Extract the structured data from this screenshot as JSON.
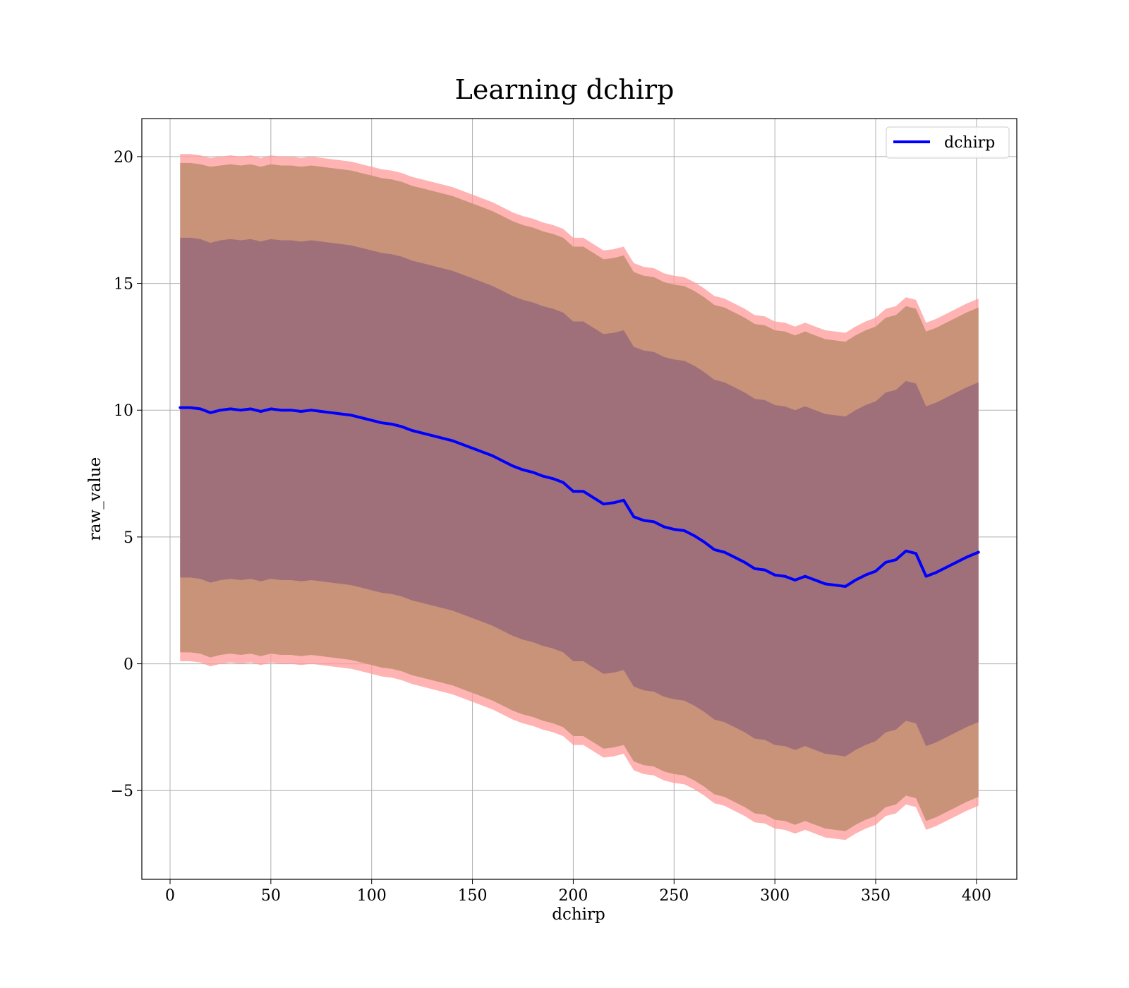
{
  "chart_data": {
    "type": "line",
    "title": "Learning dchirp",
    "xlabel": "dchirp",
    "ylabel": "raw_value",
    "xlim": [
      -14,
      420
    ],
    "ylim": [
      -8.5,
      21.5
    ],
    "x_ticks": [
      0,
      50,
      100,
      150,
      200,
      250,
      300,
      350,
      400
    ],
    "y_ticks": [
      -5,
      0,
      5,
      10,
      15,
      20
    ],
    "y_tick_labels": [
      "−5",
      "0",
      "5",
      "10",
      "15",
      "20"
    ],
    "grid": true,
    "legend": {
      "placement": "top-right",
      "entries": [
        "dchirp"
      ]
    },
    "colors": {
      "line": "#0000ff",
      "outer_band": "#ff9999",
      "middle_band": "#c9937a",
      "inner_band": "#a0707a"
    },
    "x": [
      5,
      10,
      15,
      20,
      25,
      30,
      35,
      40,
      45,
      50,
      55,
      60,
      65,
      70,
      75,
      80,
      85,
      90,
      95,
      100,
      105,
      110,
      115,
      120,
      125,
      130,
      135,
      140,
      145,
      150,
      155,
      160,
      165,
      170,
      175,
      180,
      185,
      190,
      195,
      200,
      205,
      210,
      215,
      220,
      225,
      230,
      235,
      240,
      245,
      250,
      255,
      260,
      265,
      270,
      275,
      280,
      285,
      290,
      295,
      300,
      305,
      310,
      315,
      320,
      325,
      330,
      335,
      340,
      345,
      350,
      355,
      360,
      365,
      370,
      375,
      380,
      385,
      390,
      395,
      401
    ],
    "series": [
      {
        "name": "dchirp",
        "values": [
          10.1,
          10.1,
          10.05,
          9.9,
          10.0,
          10.05,
          10.0,
          10.05,
          9.95,
          10.05,
          10.0,
          10.0,
          9.95,
          10.0,
          9.95,
          9.9,
          9.85,
          9.8,
          9.7,
          9.6,
          9.5,
          9.45,
          9.35,
          9.2,
          9.1,
          9.0,
          8.9,
          8.8,
          8.65,
          8.5,
          8.35,
          8.2,
          8.0,
          7.8,
          7.65,
          7.55,
          7.4,
          7.3,
          7.15,
          6.8,
          6.8,
          6.55,
          6.3,
          6.35,
          6.45,
          5.8,
          5.65,
          5.6,
          5.4,
          5.3,
          5.25,
          5.05,
          4.8,
          4.5,
          4.4,
          4.2,
          4.0,
          3.75,
          3.7,
          3.5,
          3.45,
          3.3,
          3.45,
          3.3,
          3.15,
          3.1,
          3.05,
          3.3,
          3.5,
          3.65,
          4.0,
          4.1,
          4.45,
          4.35,
          3.45,
          3.6,
          3.8,
          4.0,
          4.2,
          4.4
        ]
      }
    ],
    "bands": {
      "outer_upper": [
        20.1,
        20.1,
        20.05,
        19.95,
        20.0,
        20.05,
        20.0,
        20.05,
        19.95,
        20.05,
        20.0,
        20.0,
        19.95,
        20.0,
        19.95,
        19.9,
        19.85,
        19.8,
        19.7,
        19.6,
        19.5,
        19.45,
        19.35,
        19.2,
        19.1,
        19.0,
        18.9,
        18.8,
        18.65,
        18.5,
        18.35,
        18.2,
        18.0,
        17.8,
        17.65,
        17.55,
        17.4,
        17.3,
        17.15,
        16.8,
        16.8,
        16.55,
        16.3,
        16.35,
        16.45,
        15.8,
        15.65,
        15.6,
        15.4,
        15.3,
        15.25,
        15.05,
        14.8,
        14.5,
        14.4,
        14.2,
        14.0,
        13.75,
        13.7,
        13.5,
        13.45,
        13.3,
        13.45,
        13.3,
        13.15,
        13.1,
        13.05,
        13.3,
        13.5,
        13.65,
        14.0,
        14.1,
        14.45,
        14.35,
        13.45,
        13.6,
        13.8,
        14.0,
        14.2,
        14.4
      ],
      "outer_lower": [
        0.1,
        0.1,
        0.05,
        -0.1,
        0.0,
        0.05,
        0.0,
        0.05,
        -0.05,
        0.05,
        0.0,
        0.0,
        -0.05,
        0.0,
        -0.05,
        -0.1,
        -0.15,
        -0.2,
        -0.3,
        -0.4,
        -0.5,
        -0.55,
        -0.65,
        -0.8,
        -0.9,
        -1.0,
        -1.1,
        -1.2,
        -1.35,
        -1.5,
        -1.65,
        -1.8,
        -2.0,
        -2.2,
        -2.35,
        -2.45,
        -2.6,
        -2.7,
        -2.85,
        -3.2,
        -3.2,
        -3.45,
        -3.7,
        -3.65,
        -3.55,
        -4.2,
        -4.35,
        -4.4,
        -4.6,
        -4.7,
        -4.75,
        -4.95,
        -5.2,
        -5.5,
        -5.6,
        -5.8,
        -6.0,
        -6.25,
        -6.3,
        -6.5,
        -6.55,
        -6.7,
        -6.55,
        -6.7,
        -6.85,
        -6.9,
        -6.95,
        -6.7,
        -6.5,
        -6.35,
        -6.0,
        -5.9,
        -5.55,
        -5.65,
        -6.55,
        -6.4,
        -6.2,
        -6.0,
        -5.8,
        -5.6
      ],
      "middle_upper": [
        19.75,
        19.75,
        19.7,
        19.6,
        19.65,
        19.7,
        19.65,
        19.7,
        19.6,
        19.7,
        19.65,
        19.65,
        19.6,
        19.65,
        19.6,
        19.55,
        19.5,
        19.45,
        19.35,
        19.25,
        19.15,
        19.1,
        19.0,
        18.85,
        18.75,
        18.65,
        18.55,
        18.45,
        18.3,
        18.15,
        18.0,
        17.85,
        17.65,
        17.45,
        17.3,
        17.2,
        17.05,
        16.95,
        16.8,
        16.45,
        16.45,
        16.2,
        15.95,
        16.0,
        16.1,
        15.45,
        15.3,
        15.25,
        15.05,
        14.95,
        14.9,
        14.7,
        14.45,
        14.15,
        14.05,
        13.85,
        13.65,
        13.4,
        13.35,
        13.15,
        13.1,
        12.95,
        13.1,
        12.95,
        12.8,
        12.75,
        12.7,
        12.95,
        13.15,
        13.3,
        13.65,
        13.75,
        14.1,
        14.0,
        13.1,
        13.25,
        13.45,
        13.65,
        13.85,
        14.05
      ],
      "middle_lower": [
        0.45,
        0.45,
        0.4,
        0.25,
        0.35,
        0.4,
        0.35,
        0.4,
        0.3,
        0.4,
        0.35,
        0.35,
        0.3,
        0.35,
        0.3,
        0.25,
        0.2,
        0.15,
        0.05,
        -0.05,
        -0.15,
        -0.2,
        -0.3,
        -0.45,
        -0.55,
        -0.65,
        -0.75,
        -0.85,
        -1.0,
        -1.15,
        -1.3,
        -1.45,
        -1.65,
        -1.85,
        -2.0,
        -2.1,
        -2.25,
        -2.35,
        -2.5,
        -2.85,
        -2.85,
        -3.1,
        -3.35,
        -3.3,
        -3.2,
        -3.85,
        -4.0,
        -4.05,
        -4.25,
        -4.35,
        -4.4,
        -4.6,
        -4.85,
        -5.15,
        -5.25,
        -5.45,
        -5.65,
        -5.9,
        -5.95,
        -6.15,
        -6.2,
        -6.35,
        -6.2,
        -6.35,
        -6.5,
        -6.55,
        -6.6,
        -6.35,
        -6.15,
        -6.0,
        -5.65,
        -5.55,
        -5.2,
        -5.3,
        -6.2,
        -6.05,
        -5.85,
        -5.65,
        -5.45,
        -5.25
      ],
      "inner_upper": [
        16.8,
        16.8,
        16.75,
        16.6,
        16.7,
        16.75,
        16.7,
        16.75,
        16.65,
        16.75,
        16.7,
        16.7,
        16.65,
        16.7,
        16.65,
        16.6,
        16.55,
        16.5,
        16.4,
        16.3,
        16.2,
        16.15,
        16.05,
        15.9,
        15.8,
        15.7,
        15.6,
        15.5,
        15.35,
        15.2,
        15.05,
        14.9,
        14.7,
        14.5,
        14.35,
        14.25,
        14.1,
        14.0,
        13.85,
        13.5,
        13.5,
        13.25,
        13.0,
        13.05,
        13.15,
        12.5,
        12.35,
        12.3,
        12.1,
        12.0,
        11.95,
        11.75,
        11.5,
        11.2,
        11.1,
        10.9,
        10.7,
        10.45,
        10.4,
        10.2,
        10.15,
        10.0,
        10.15,
        10.0,
        9.85,
        9.8,
        9.75,
        10.0,
        10.2,
        10.35,
        10.7,
        10.8,
        11.15,
        11.05,
        10.15,
        10.3,
        10.5,
        10.7,
        10.9,
        11.1
      ],
      "inner_lower": [
        3.4,
        3.4,
        3.35,
        3.2,
        3.3,
        3.35,
        3.3,
        3.35,
        3.25,
        3.35,
        3.3,
        3.3,
        3.25,
        3.3,
        3.25,
        3.2,
        3.15,
        3.1,
        3.0,
        2.9,
        2.8,
        2.75,
        2.65,
        2.5,
        2.4,
        2.3,
        2.2,
        2.1,
        1.95,
        1.8,
        1.65,
        1.5,
        1.3,
        1.1,
        0.95,
        0.85,
        0.7,
        0.6,
        0.45,
        0.1,
        0.1,
        -0.15,
        -0.4,
        -0.35,
        -0.25,
        -0.9,
        -1.05,
        -1.1,
        -1.3,
        -1.4,
        -1.45,
        -1.65,
        -1.9,
        -2.2,
        -2.3,
        -2.5,
        -2.7,
        -2.95,
        -3.0,
        -3.2,
        -3.25,
        -3.4,
        -3.25,
        -3.4,
        -3.55,
        -3.6,
        -3.65,
        -3.4,
        -3.2,
        -3.05,
        -2.7,
        -2.6,
        -2.25,
        -2.35,
        -3.25,
        -3.1,
        -2.9,
        -2.7,
        -2.5,
        -2.3
      ]
    }
  }
}
